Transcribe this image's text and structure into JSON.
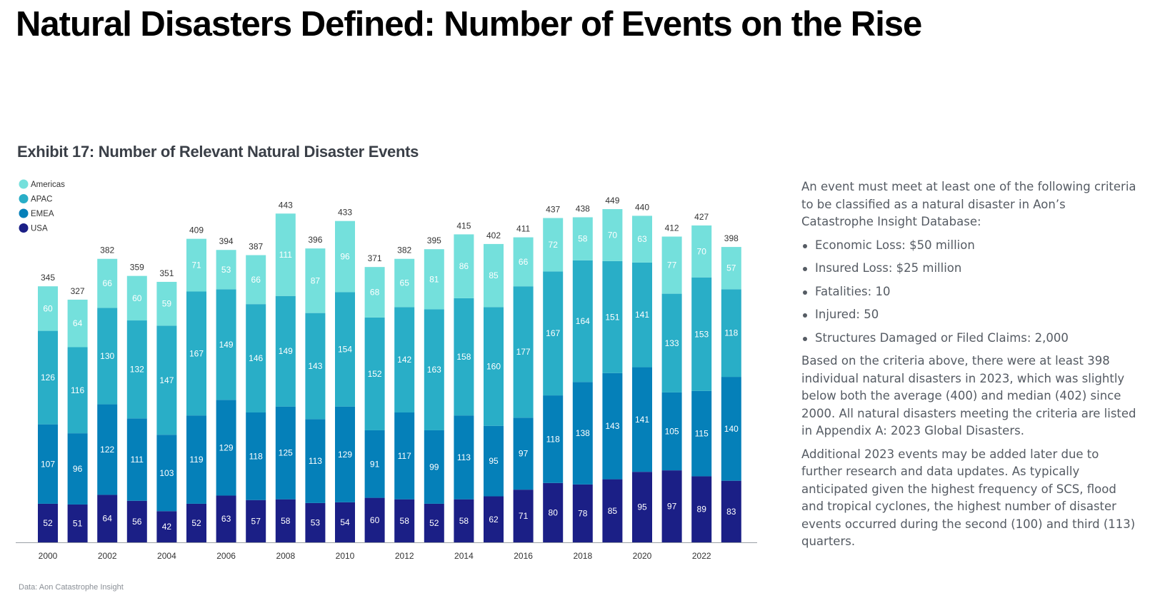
{
  "page": {
    "title": "Natural Disasters Defined: Number of Events on the Rise"
  },
  "chart_data": {
    "type": "bar",
    "stacked": true,
    "title": "Exhibit 17: Number of Relevant Natural Disaster Events",
    "source": "Data: Aon Catastrophe Insight",
    "legend_position": "top-left",
    "grid": false,
    "ylim": [
      0,
      470
    ],
    "categories": [
      "2000",
      "2001",
      "2002",
      "2003",
      "2004",
      "2005",
      "2006",
      "2007",
      "2008",
      "2009",
      "2010",
      "2011",
      "2012",
      "2013",
      "2014",
      "2015",
      "2016",
      "2017",
      "2018",
      "2019",
      "2020",
      "2021",
      "2022",
      "2023"
    ],
    "tick_labels": [
      "2000",
      "",
      "2002",
      "",
      "2004",
      "",
      "2006",
      "",
      "2008",
      "",
      "2010",
      "",
      "2012",
      "",
      "2014",
      "",
      "2016",
      "",
      "2018",
      "",
      "2020",
      "",
      "2022",
      ""
    ],
    "totals": [
      345,
      327,
      382,
      359,
      351,
      409,
      394,
      387,
      443,
      396,
      433,
      371,
      382,
      395,
      415,
      402,
      411,
      437,
      438,
      449,
      440,
      412,
      427,
      398
    ],
    "series": [
      {
        "name": "USA",
        "color": "#1b1f86",
        "values": [
          52,
          51,
          64,
          56,
          42,
          52,
          63,
          57,
          58,
          53,
          54,
          60,
          58,
          52,
          58,
          62,
          71,
          80,
          78,
          85,
          95,
          97,
          89,
          83
        ]
      },
      {
        "name": "EMEA",
        "color": "#0580b9",
        "values": [
          107,
          96,
          122,
          111,
          103,
          119,
          129,
          118,
          125,
          113,
          129,
          91,
          117,
          99,
          113,
          95,
          97,
          118,
          138,
          143,
          141,
          105,
          115,
          140
        ]
      },
      {
        "name": "APAC",
        "color": "#29aec7",
        "values": [
          126,
          116,
          130,
          132,
          147,
          167,
          149,
          146,
          149,
          143,
          154,
          152,
          142,
          163,
          158,
          160,
          177,
          167,
          164,
          151,
          141,
          133,
          153,
          118
        ]
      },
      {
        "name": "Americas",
        "color": "#74e0dc",
        "values": [
          60,
          64,
          66,
          60,
          59,
          71,
          53,
          66,
          111,
          87,
          96,
          68,
          65,
          81,
          86,
          85,
          66,
          72,
          58,
          70,
          63,
          77,
          70,
          57
        ]
      }
    ],
    "legend_order": [
      "Americas",
      "APAC",
      "EMEA",
      "USA"
    ]
  },
  "side_panel": {
    "intro": "An event must meet at least one of the following criteria to be classified as a natural disaster in Aon’s Catastrophe Insight Database:",
    "criteria": [
      "Economic Loss: $50 million",
      "Insured Loss: $25 million",
      "Fatalities: 10",
      "Injured: 50",
      "Structures Damaged or Filed Claims: 2,000"
    ],
    "paragraph1": "Based on the criteria above, there were at least 398 individual natural disasters in 2023, which was slightly below both the average (400) and median (402) since 2000. All natural disasters meeting the criteria are listed in Appendix A: 2023 Global Disasters.",
    "paragraph2": "Additional 2023 events may be added later due to further research and data updates. As typically anticipated given the highest frequency of SCS, flood and tropical cyclones, the highest number of disaster events occurred during the second (100) and third (113) quarters."
  }
}
